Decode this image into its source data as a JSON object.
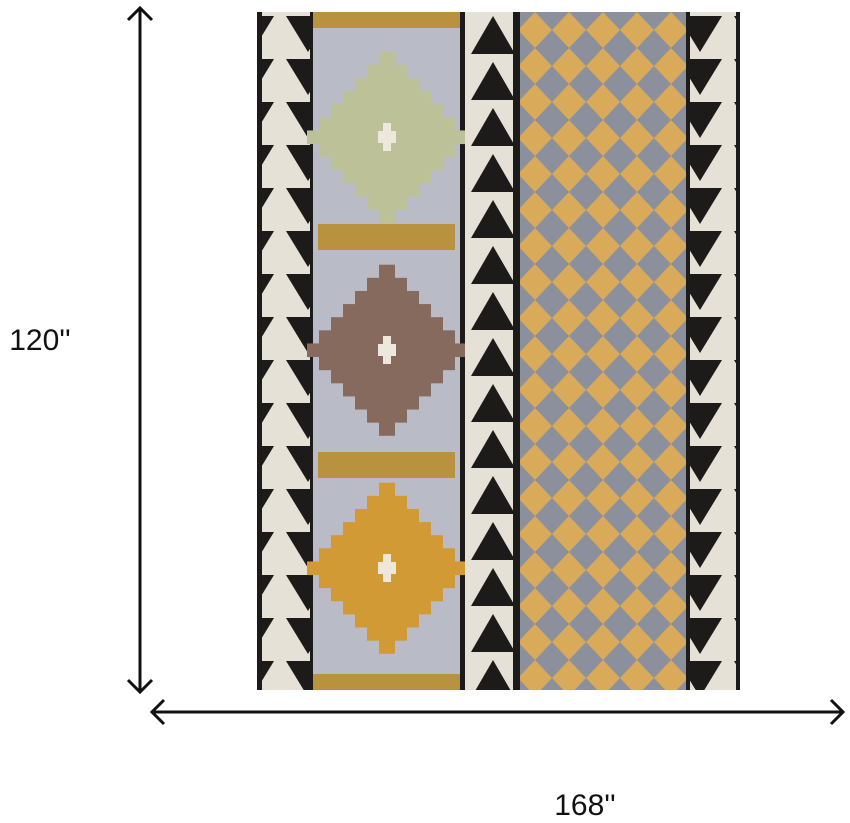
{
  "dimensions": {
    "height": "120''",
    "width": "168''"
  }
}
